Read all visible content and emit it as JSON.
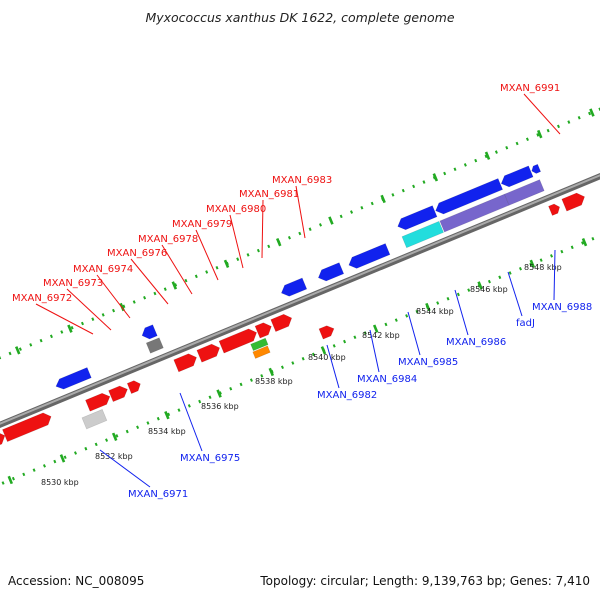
{
  "title": "Myxococcus xanthus DK 1622, complete genome",
  "footer": {
    "accession": "Accession: NC_008095",
    "summary": "Topology: circular; Length: 9,139,763 bp; Genes: 7,410"
  },
  "colors": {
    "forward": "#ee1111",
    "reverse": "#1122ee",
    "reverse_light": "#7766cc",
    "highlight_cyan": "#22dddd",
    "grey_light": "#cccccc",
    "grey_dark": "#777777",
    "orange": "#ff8800",
    "green": "#33bb33",
    "tick_green": "#22aa22",
    "backbone": "#888888"
  },
  "scale_ticks": [
    {
      "label": "8530 kbp"
    },
    {
      "label": "8532 kbp"
    },
    {
      "label": "8534 kbp"
    },
    {
      "label": "8536 kbp"
    },
    {
      "label": "8538 kbp"
    },
    {
      "label": "8540 kbp"
    },
    {
      "label": "8542 kbp"
    },
    {
      "label": "8544 kbp"
    },
    {
      "label": "8546 kbp"
    },
    {
      "label": "8548 kbp"
    }
  ],
  "forward_labels": [
    {
      "name": "MXAN_6972"
    },
    {
      "name": "MXAN_6973"
    },
    {
      "name": "MXAN_6974"
    },
    {
      "name": "MXAN_6976"
    },
    {
      "name": "MXAN_6978"
    },
    {
      "name": "MXAN_6979"
    },
    {
      "name": "MXAN_6980"
    },
    {
      "name": "MXAN_6981"
    },
    {
      "name": "MXAN_6983"
    },
    {
      "name": "MXAN_6991"
    }
  ],
  "reverse_labels": [
    {
      "name": "MXAN_6971"
    },
    {
      "name": "MXAN_6975"
    },
    {
      "name": "MXAN_6982"
    },
    {
      "name": "MXAN_6984"
    },
    {
      "name": "MXAN_6985"
    },
    {
      "name": "MXAN_6986"
    },
    {
      "name": "fadJ"
    },
    {
      "name": "MXAN_6988"
    }
  ]
}
